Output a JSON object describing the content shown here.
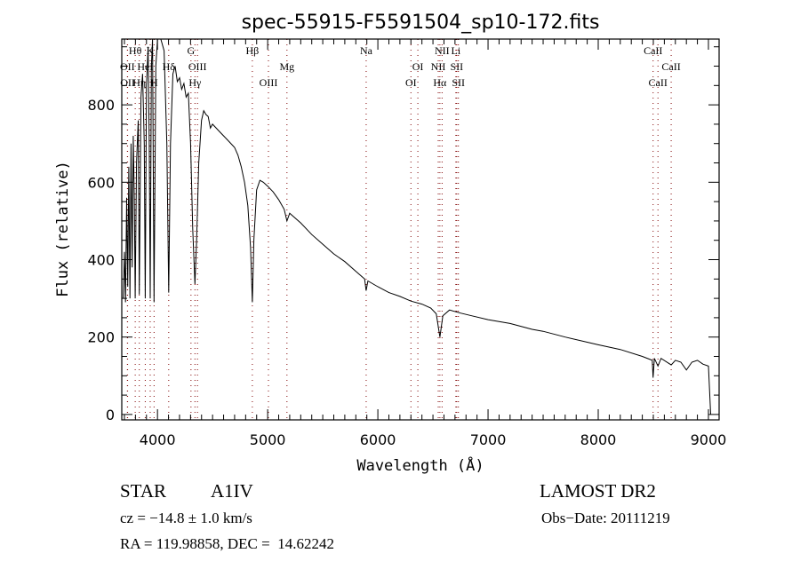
{
  "chart_data": {
    "type": "line",
    "title": "spec-55915-F5591504_sp10-172.fits",
    "xlabel": "Wavelength (Å)",
    "ylabel": "Flux (relative)",
    "xlim": [
      3676,
      9097
    ],
    "ylim": [
      -14,
      970
    ],
    "x_ticks": [
      4000,
      5000,
      6000,
      7000,
      8000,
      9000
    ],
    "x_minor_step": 100,
    "y_ticks": [
      0,
      200,
      400,
      600,
      800
    ],
    "y_minor_step": 50,
    "grid": false,
    "line_color": "#000000",
    "marker_color": "#800000",
    "spectrum": {
      "wavelength": [
        3690,
        3700,
        3710,
        3720,
        3730,
        3740,
        3750,
        3760,
        3770,
        3780,
        3790,
        3798,
        3810,
        3825,
        3835,
        3850,
        3865,
        3880,
        3889,
        3900,
        3915,
        3925,
        3934,
        3945,
        3955,
        3969,
        3985,
        4000,
        4030,
        4060,
        4085,
        4102,
        4118,
        4140,
        4160,
        4180,
        4200,
        4220,
        4240,
        4260,
        4280,
        4300,
        4320,
        4340,
        4355,
        4375,
        4400,
        4420,
        4440,
        4460,
        4480,
        4500,
        4550,
        4600,
        4650,
        4700,
        4730,
        4760,
        4790,
        4820,
        4845,
        4861,
        4875,
        4900,
        4930,
        4960,
        5000,
        5050,
        5100,
        5150,
        5175,
        5200,
        5300,
        5400,
        5500,
        5600,
        5700,
        5800,
        5880,
        5894,
        5910,
        6000,
        6100,
        6200,
        6300,
        6400,
        6480,
        6530,
        6563,
        6590,
        6650,
        6750,
        6850,
        7000,
        7200,
        7400,
        7500,
        7700,
        8000,
        8200,
        8400,
        8490,
        8498,
        8510,
        8542,
        8570,
        8662,
        8700,
        8750,
        8800,
        8850,
        8900,
        8950,
        9000,
        9020
      ],
      "flux": [
        300,
        420,
        290,
        560,
        330,
        640,
        300,
        700,
        380,
        720,
        560,
        300,
        650,
        760,
        310,
        820,
        880,
        700,
        300,
        850,
        950,
        700,
        300,
        900,
        980,
        290,
        900,
        980,
        990,
        940,
        700,
        315,
        700,
        880,
        900,
        860,
        870,
        840,
        855,
        820,
        830,
        700,
        480,
        337,
        450,
        650,
        760,
        785,
        775,
        770,
        740,
        750,
        735,
        720,
        705,
        690,
        670,
        640,
        600,
        540,
        430,
        290,
        450,
        580,
        605,
        600,
        590,
        575,
        555,
        530,
        500,
        520,
        495,
        465,
        440,
        415,
        395,
        370,
        350,
        320,
        345,
        330,
        315,
        305,
        293,
        285,
        275,
        260,
        200,
        255,
        270,
        262,
        255,
        245,
        235,
        220,
        215,
        200,
        180,
        168,
        150,
        140,
        95,
        145,
        125,
        145,
        128,
        140,
        135,
        115,
        135,
        140,
        130,
        125,
        0
      ]
    },
    "lines": [
      {
        "label": "OII",
        "wave": 3727,
        "row": 2
      },
      {
        "label": "OII",
        "wave": 3729,
        "row": 3
      },
      {
        "label": "Hθ",
        "wave": 3798,
        "row": 1
      },
      {
        "label": "Hη",
        "wave": 3835,
        "row": 3
      },
      {
        "label": "HeI",
        "wave": 3889,
        "row": 2
      },
      {
        "label": "K",
        "wave": 3934,
        "row": 1
      },
      {
        "label": "H",
        "wave": 3969,
        "row": 3
      },
      {
        "label": "Hδ",
        "wave": 4102,
        "row": 2
      },
      {
        "label": "G",
        "wave": 4304,
        "row": 1
      },
      {
        "label": "Hγ",
        "wave": 4340,
        "row": 3
      },
      {
        "label": "OIII",
        "wave": 4363,
        "row": 2
      },
      {
        "label": "Hβ",
        "wave": 4861,
        "row": 1
      },
      {
        "label": "OIII",
        "wave": 5007,
        "row": 3
      },
      {
        "label": "Mg",
        "wave": 5175,
        "row": 2
      },
      {
        "label": "Na",
        "wave": 5894,
        "row": 1
      },
      {
        "label": "OI",
        "wave": 6300,
        "row": 3
      },
      {
        "label": "OI",
        "wave": 6363,
        "row": 2
      },
      {
        "label": "NII",
        "wave": 6548,
        "row": 2
      },
      {
        "label": "Hα",
        "wave": 6563,
        "row": 3
      },
      {
        "label": "NII",
        "wave": 6583,
        "row": 1
      },
      {
        "label": "Li",
        "wave": 6708,
        "row": 1
      },
      {
        "label": "SII",
        "wave": 6716,
        "row": 2
      },
      {
        "label": "SII",
        "wave": 6731,
        "row": 3
      },
      {
        "label": "CaII",
        "wave": 8498,
        "row": 1
      },
      {
        "label": "CaII",
        "wave": 8542,
        "row": 3
      },
      {
        "label": "CaII",
        "wave": 8662,
        "row": 2
      }
    ]
  },
  "info": {
    "object_class": "STAR",
    "subclass": "A1IV",
    "survey": "LAMOST DR2",
    "redshift": "cz = −14.8 ± 1.0 km/s",
    "obs_date": "Obs−Date: 20111219",
    "coords": "RA = 119.98858, DEC =  14.62242"
  }
}
